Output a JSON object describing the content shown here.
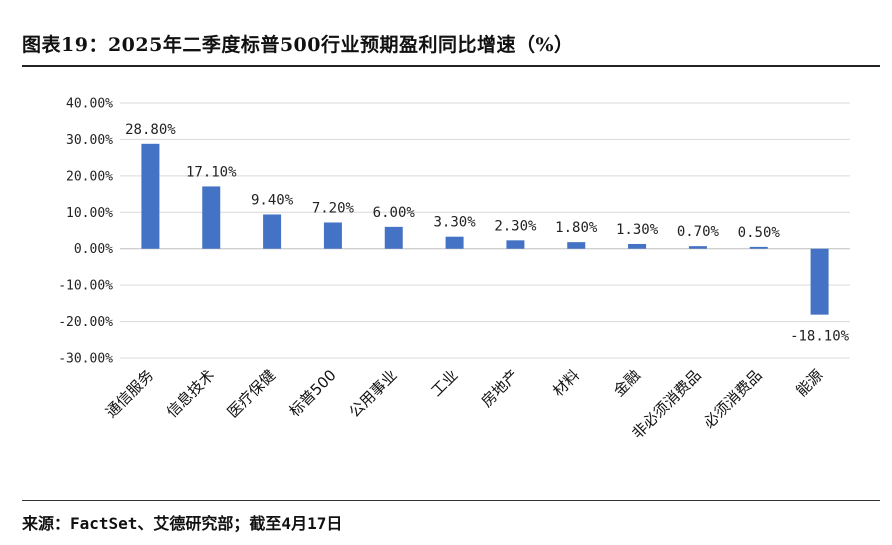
{
  "header": {
    "title": "图表19：2025年二季度标普500行业预期盈利同比增速（%）"
  },
  "footer": {
    "source": "来源：FactSet、艾德研究部；截至4月17日"
  },
  "colors": {
    "bar": "#4472C4",
    "grid": "#d9d9d9",
    "zero_line": "#bfbfbf"
  },
  "chart_data": {
    "type": "bar",
    "categories": [
      "通信服务",
      "信息技术",
      "医疗保健",
      "标普500",
      "公用事业",
      "工业",
      "房地产",
      "材料",
      "金融",
      "非必须消费品",
      "必须消费品",
      "能源"
    ],
    "values": [
      28.8,
      17.1,
      9.4,
      7.2,
      6.0,
      3.3,
      2.3,
      1.8,
      1.3,
      0.7,
      0.5,
      -18.1
    ],
    "data_labels": [
      "28.80%",
      "17.10%",
      "9.40%",
      "7.20%",
      "6.00%",
      "3.30%",
      "2.30%",
      "1.80%",
      "1.30%",
      "0.70%",
      "0.50%",
      "-18.10%"
    ],
    "yticks": [
      40,
      30,
      20,
      10,
      0,
      -10,
      -20,
      -30
    ],
    "ytick_labels": [
      "40.00%",
      "30.00%",
      "20.00%",
      "10.00%",
      "0.00%",
      "-10.00%",
      "-20.00%",
      "-30.00%"
    ],
    "ylim": [
      -30,
      40
    ],
    "grid": true,
    "legend": "none"
  }
}
